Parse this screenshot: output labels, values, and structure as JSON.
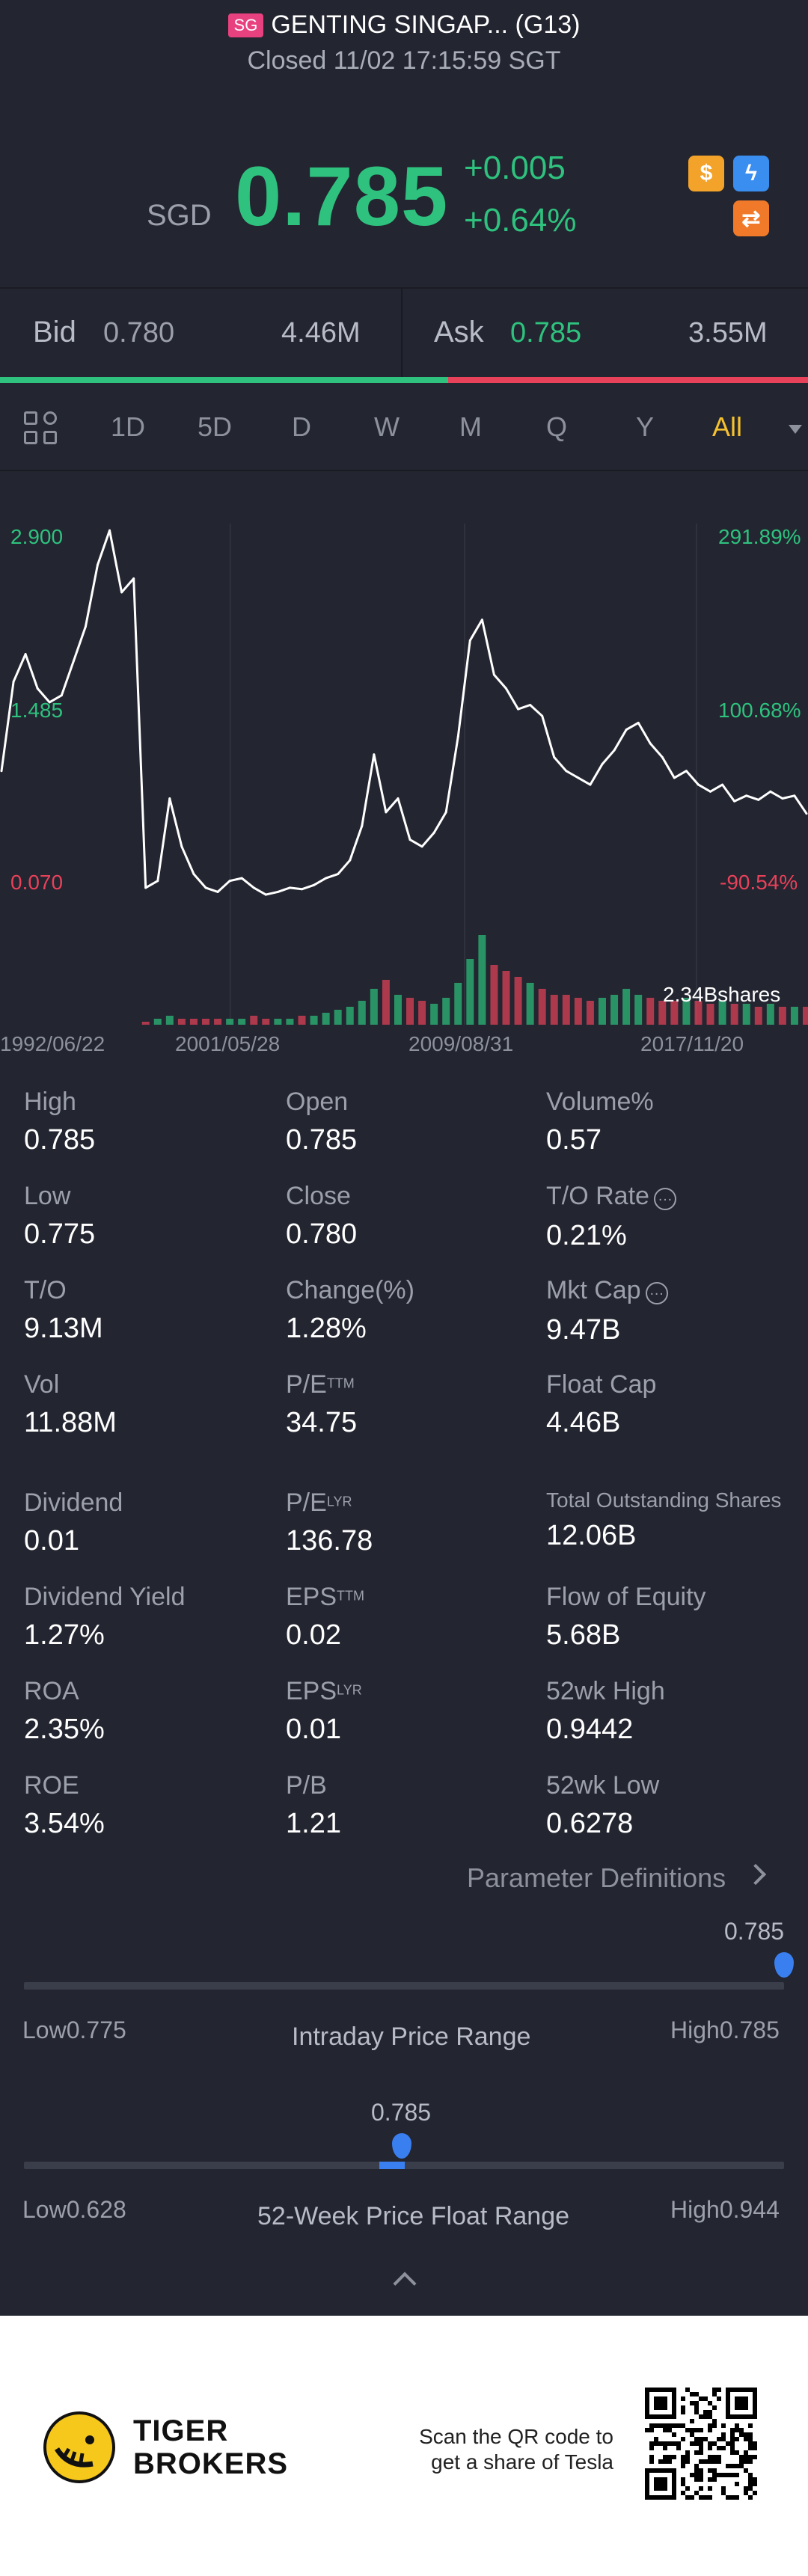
{
  "header": {
    "market_badge": "SG",
    "title": "GENTING SINGAP... (G13)",
    "status": "Closed 11/02 17:15:59 SGT"
  },
  "quote": {
    "currency": "SGD",
    "price": "0.785",
    "change": "+0.005",
    "change_pct": "+0.64%",
    "up_color": "#2ec27e",
    "down_color": "#e8415a",
    "icons": [
      "dollar-icon",
      "lightning-icon",
      "swap-icon"
    ],
    "icon_glyphs": {
      "dollar": "$",
      "bolt": "ϟ",
      "swap": "⇄"
    }
  },
  "orderbook": {
    "bid_label": "Bid",
    "bid_price": "0.780",
    "bid_volume": "4.46M",
    "ask_label": "Ask",
    "ask_price": "0.785",
    "ask_volume": "3.55M",
    "bid_share": 0.555
  },
  "periods": {
    "items": [
      "1D",
      "5D",
      "D",
      "W",
      "M",
      "Q",
      "Y",
      "All"
    ],
    "active": "All"
  },
  "chart_data": {
    "type": "line",
    "y_left_ticks": [
      "2.900",
      "1.485",
      "0.070"
    ],
    "y_right_ticks": [
      "291.89%",
      "100.68%",
      "-90.54%"
    ],
    "volume_label": "2.34Bshares",
    "x_ticks": [
      "1992/06/22",
      "2001/05/28",
      "2009/08/31",
      "2017/11/20"
    ],
    "ylim": [
      0.07,
      2.9
    ],
    "x": [
      "1992-06",
      "1993-01",
      "1993-06",
      "1994-01",
      "1994-06",
      "1995-01",
      "1995-06",
      "1996-01",
      "1996-06",
      "1997-01",
      "1997-04",
      "1997-06",
      "1997-08",
      "1997-10",
      "1998-01",
      "1998-06",
      "1999-01",
      "1999-06",
      "2000-01",
      "2000-06",
      "2001-01",
      "2001-06",
      "2002-01",
      "2002-06",
      "2003-01",
      "2003-06",
      "2004-01",
      "2004-06",
      "2005-01",
      "2005-06",
      "2006-01",
      "2006-06",
      "2007-01",
      "2007-06",
      "2007-10",
      "2008-03",
      "2008-08",
      "2008-12",
      "2009-03",
      "2009-06",
      "2009-09",
      "2010-01",
      "2010-03",
      "2010-06",
      "2010-10",
      "2011-01",
      "2011-06",
      "2012-01",
      "2012-06",
      "2013-01",
      "2013-06",
      "2014-01",
      "2014-06",
      "2015-01",
      "2015-06",
      "2016-01",
      "2016-06",
      "2017-01",
      "2017-06",
      "2018-01",
      "2018-06",
      "2019-01",
      "2019-06",
      "2020-01",
      "2020-06",
      "2021-01",
      "2021-06",
      "2021-11"
    ],
    "series": [
      {
        "values": [
          1.1,
          1.75,
          1.95,
          1.7,
          1.6,
          1.65,
          1.9,
          2.15,
          2.6,
          2.85,
          2.4,
          2.5,
          0.25,
          0.3,
          0.9,
          0.55,
          0.35,
          0.25,
          0.22,
          0.3,
          0.32,
          0.25,
          0.2,
          0.22,
          0.25,
          0.24,
          0.27,
          0.32,
          0.35,
          0.45,
          0.7,
          1.22,
          0.8,
          0.9,
          0.6,
          0.55,
          0.65,
          0.8,
          1.35,
          2.05,
          2.2,
          1.8,
          1.7,
          1.55,
          1.58,
          1.5,
          1.2,
          1.1,
          1.05,
          1.0,
          1.15,
          1.25,
          1.4,
          1.45,
          1.3,
          1.2,
          1.05,
          1.1,
          1.0,
          0.95,
          1.0,
          0.88,
          0.92,
          0.89,
          0.95,
          0.9,
          0.92,
          0.79
        ]
      }
    ],
    "volume": [
      0,
      0,
      0,
      0,
      0,
      0,
      0,
      0,
      0,
      0,
      0,
      0,
      1,
      2,
      3,
      2,
      2,
      2,
      2,
      2,
      2,
      3,
      2,
      2,
      2,
      3,
      3,
      4,
      5,
      6,
      8,
      12,
      15,
      10,
      9,
      8,
      7,
      9,
      14,
      22,
      30,
      20,
      18,
      16,
      14,
      12,
      10,
      10,
      9,
      8,
      9,
      10,
      12,
      10,
      9,
      8,
      8,
      9,
      8,
      7,
      8,
      7,
      7,
      6,
      7,
      6,
      6,
      6
    ]
  },
  "stats": [
    {
      "label": "High",
      "value": "0.785"
    },
    {
      "label": "Open",
      "value": "0.785"
    },
    {
      "label": "Volume%",
      "value": "0.57"
    },
    {
      "label": "Low",
      "value": "0.775"
    },
    {
      "label": "Close",
      "value": "0.780"
    },
    {
      "label": "T/O Rate",
      "value": "0.21%"
    },
    {
      "label": "T/O",
      "value": "9.13M"
    },
    {
      "label": "Change(%)",
      "value": "1.28%"
    },
    {
      "label": "Mkt Cap",
      "value": "9.47B"
    },
    {
      "label": "Vol",
      "value": "11.88M"
    },
    {
      "label": "P/E",
      "sup": "TTM",
      "value": "34.75"
    },
    {
      "label": "Float Cap",
      "value": "4.46B"
    },
    {
      "label": "Dividend",
      "value": "0.01"
    },
    {
      "label": "P/E",
      "sup": "LYR",
      "value": "136.78"
    },
    {
      "label": "Total Outstanding Shares",
      "value": "12.06B"
    },
    {
      "label": "Dividend Yield",
      "value": "1.27%"
    },
    {
      "label": "EPS",
      "sup": "TTM",
      "value": "0.02"
    },
    {
      "label": "Flow of Equity",
      "value": "5.68B"
    },
    {
      "label": "ROA",
      "value": "2.35%"
    },
    {
      "label": "EPS",
      "sup": "LYR",
      "value": "0.01"
    },
    {
      "label": "52wk High",
      "value": "0.9442"
    },
    {
      "label": "ROE",
      "value": "3.54%"
    },
    {
      "label": "P/B",
      "value": "1.21"
    },
    {
      "label": "52wk Low",
      "value": "0.6278"
    }
  ],
  "param_link": "Parameter Definitions",
  "intraday_range": {
    "current": "0.785",
    "low_label": "Low",
    "low": "0.775",
    "high_label": "High",
    "high": "0.785",
    "title": "Intraday Price Range",
    "position": 1.0
  },
  "week52_range": {
    "current": "0.785",
    "low_label": "Low",
    "low": "0.628",
    "high_label": "High",
    "high": "0.944",
    "title": "52-Week Price Float Range",
    "position": 0.497
  },
  "footer": {
    "brand_line1": "TIGER",
    "brand_line2": "BROKERS",
    "qr_line1": "Scan the QR code to",
    "qr_line2": "get a share of Tesla"
  }
}
